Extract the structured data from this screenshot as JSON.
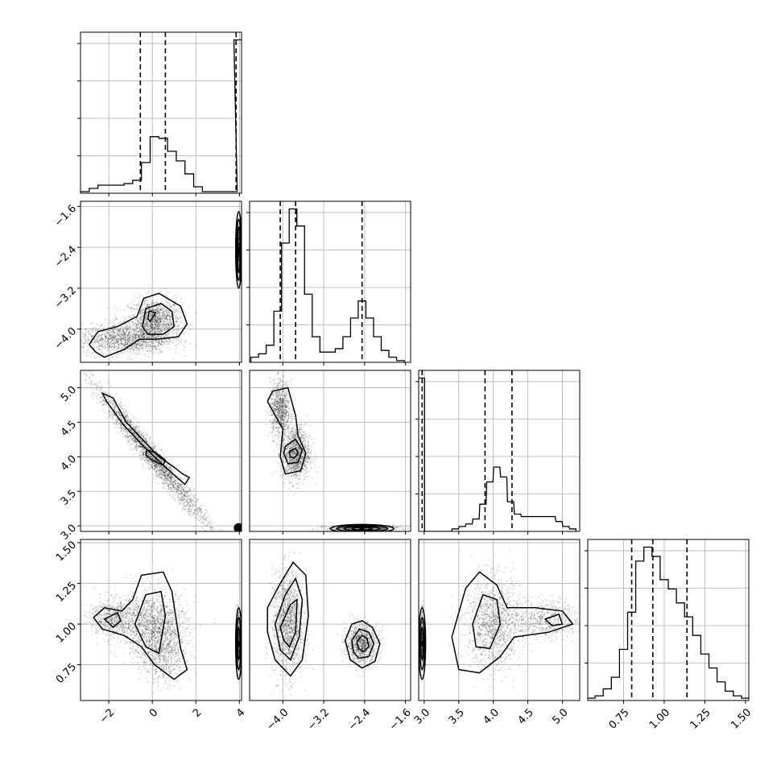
{
  "chart_data": {
    "type": "corner",
    "grid": true,
    "parameters": [
      {
        "key": "p1",
        "range": [
          -3.3,
          4.1
        ],
        "ticks": [
          -2,
          0,
          2,
          4
        ],
        "tick_labels": [
          "−2",
          "0",
          "2",
          "4"
        ],
        "quantiles": [
          -0.55,
          0.6,
          3.85
        ]
      },
      {
        "key": "p2",
        "range": [
          -4.65,
          -1.5
        ],
        "ticks": [
          -4.0,
          -3.2,
          -2.4,
          -1.6
        ],
        "tick_labels": [
          "−4.0",
          "−3.2",
          "−2.4",
          "−1.6"
        ],
        "quantiles": [
          -4.05,
          -3.75,
          -2.45
        ]
      },
      {
        "key": "p3",
        "range": [
          2.92,
          5.25
        ],
        "ticks": [
          3.0,
          3.5,
          4.0,
          4.5,
          5.0
        ],
        "tick_labels": [
          "3.0",
          "3.5",
          "4.0",
          "4.5",
          "5.0"
        ],
        "quantiles": [
          2.97,
          3.88,
          4.27
        ]
      },
      {
        "key": "p4",
        "range": [
          0.53,
          1.52
        ],
        "ticks": [
          0.75,
          1.0,
          1.25,
          1.5
        ],
        "tick_labels": [
          "0.75",
          "1.00",
          "1.25",
          "1.50"
        ],
        "quantiles": [
          0.8,
          0.93,
          1.14
        ]
      }
    ],
    "histograms": [
      {
        "param": 0,
        "x": [
          -3.1,
          -2.7,
          -2.3,
          -1.9,
          -1.5,
          -1.1,
          -0.7,
          -0.3,
          0.1,
          0.5,
          0.9,
          1.3,
          1.7,
          2.1,
          2.5,
          2.9,
          3.3,
          3.7,
          3.95
        ],
        "values": [
          1,
          3,
          5,
          5,
          5,
          6,
          8,
          19,
          35,
          34,
          26,
          20,
          12,
          4,
          1,
          1,
          1,
          1,
          95
        ]
      },
      {
        "param": 1,
        "x": [
          -4.55,
          -4.4,
          -4.25,
          -4.1,
          -3.95,
          -3.8,
          -3.65,
          -3.5,
          -3.35,
          -3.2,
          -3.05,
          -2.9,
          -2.75,
          -2.6,
          -2.45,
          -2.3,
          -2.15,
          -2.0,
          -1.85,
          -1.7
        ],
        "values": [
          3,
          5,
          10,
          30,
          70,
          90,
          80,
          40,
          15,
          6,
          6,
          8,
          15,
          26,
          36,
          26,
          15,
          7,
          3,
          1
        ]
      },
      {
        "param": 2,
        "x": [
          2.96,
          3.05,
          3.15,
          3.25,
          3.35,
          3.45,
          3.55,
          3.65,
          3.75,
          3.85,
          3.95,
          4.05,
          4.15,
          4.25,
          4.35,
          4.45,
          4.55,
          4.65,
          4.75,
          4.85,
          4.95,
          5.05,
          5.15
        ],
        "values": [
          62,
          0,
          0,
          0,
          0,
          1,
          2,
          3,
          5,
          11,
          20,
          26,
          22,
          12,
          7,
          6,
          6,
          6,
          6,
          6,
          4,
          2,
          1
        ]
      },
      {
        "param": 3,
        "x": [
          0.55,
          0.6,
          0.65,
          0.7,
          0.75,
          0.8,
          0.85,
          0.9,
          0.95,
          1.0,
          1.05,
          1.1,
          1.15,
          1.2,
          1.25,
          1.3,
          1.35,
          1.4,
          1.45,
          1.5
        ],
        "values": [
          1,
          2,
          5,
          10,
          22,
          38,
          60,
          66,
          62,
          52,
          48,
          42,
          36,
          28,
          20,
          14,
          8,
          4,
          2,
          1
        ]
      }
    ],
    "blobs": [
      {
        "px": 0,
        "py": 1,
        "x": 0.1,
        "y": -3.85,
        "sx": 0.6,
        "sy": 0.22,
        "n": 1500
      },
      {
        "px": 0,
        "py": 1,
        "x": -1.3,
        "y": -4.2,
        "sx": 1.0,
        "sy": 0.15,
        "n": 1400
      },
      {
        "px": 0,
        "py": 1,
        "x": 3.95,
        "y": -2.45,
        "sx": 0.03,
        "sy": 0.18,
        "n": 500
      },
      {
        "px": 0,
        "py": 2,
        "x": 0.0,
        "y": 4.0,
        "sx": 1.3,
        "sy": 0.1,
        "n": 2400,
        "slope": -0.38
      },
      {
        "px": 0,
        "py": 2,
        "x": 3.95,
        "y": 2.97,
        "sx": 0.05,
        "sy": 0.02,
        "n": 400
      },
      {
        "px": 1,
        "py": 2,
        "x": -3.75,
        "y": 4.05,
        "sx": 0.14,
        "sy": 0.2,
        "n": 1300
      },
      {
        "px": 1,
        "py": 2,
        "x": -4.05,
        "y": 4.7,
        "sx": 0.1,
        "sy": 0.2,
        "n": 900
      },
      {
        "px": 1,
        "py": 2,
        "x": -2.45,
        "y": 2.97,
        "sx": 0.35,
        "sy": 0.02,
        "n": 700
      },
      {
        "px": 0,
        "py": 3,
        "x": 0.0,
        "y": 1.0,
        "sx": 0.8,
        "sy": 0.1,
        "n": 1400
      },
      {
        "px": 0,
        "py": 3,
        "x": -1.8,
        "y": 1.04,
        "sx": 0.55,
        "sy": 0.06,
        "n": 700
      },
      {
        "px": 0,
        "py": 3,
        "x": 0.5,
        "y": 0.83,
        "sx": 0.5,
        "sy": 0.1,
        "n": 800
      },
      {
        "px": 0,
        "py": 3,
        "x": 3.95,
        "y": 0.9,
        "sx": 0.03,
        "sy": 0.1,
        "n": 400
      },
      {
        "px": 1,
        "py": 3,
        "x": -3.9,
        "y": 1.0,
        "sx": 0.15,
        "sy": 0.16,
        "n": 1600
      },
      {
        "px": 1,
        "py": 3,
        "x": -2.45,
        "y": 0.88,
        "sx": 0.16,
        "sy": 0.06,
        "n": 1100
      },
      {
        "px": 2,
        "py": 3,
        "x": 4.0,
        "y": 1.0,
        "sx": 0.2,
        "sy": 0.14,
        "n": 1400
      },
      {
        "px": 2,
        "py": 3,
        "x": 4.75,
        "y": 1.03,
        "sx": 0.25,
        "sy": 0.06,
        "n": 600
      },
      {
        "px": 2,
        "py": 3,
        "x": 2.97,
        "y": 0.9,
        "sx": 0.01,
        "sy": 0.1,
        "n": 400
      }
    ],
    "contours": [
      {
        "px": 0,
        "py": 1,
        "points": [
          [
            -2.6,
            -4.45
          ],
          [
            -2.9,
            -4.3
          ],
          [
            -2.5,
            -4.05
          ],
          [
            -1.6,
            -3.95
          ],
          [
            -0.7,
            -3.75
          ],
          [
            -0.4,
            -3.4
          ],
          [
            0.3,
            -3.3
          ],
          [
            1.3,
            -3.55
          ],
          [
            1.6,
            -3.9
          ],
          [
            1.2,
            -4.15
          ],
          [
            0.2,
            -4.2
          ],
          [
            -0.6,
            -4.2
          ],
          [
            -1.3,
            -4.4
          ],
          [
            -2.2,
            -4.55
          ]
        ]
      },
      {
        "px": 0,
        "py": 1,
        "points": [
          [
            -0.45,
            -3.95
          ],
          [
            -0.3,
            -3.6
          ],
          [
            0.4,
            -3.5
          ],
          [
            0.9,
            -3.65
          ],
          [
            1.0,
            -3.95
          ],
          [
            0.5,
            -4.1
          ],
          [
            -0.2,
            -4.1
          ]
        ]
      },
      {
        "px": 0,
        "py": 1,
        "points": [
          [
            -0.2,
            -3.8
          ],
          [
            -0.15,
            -3.65
          ],
          [
            0.15,
            -3.68
          ],
          [
            0.05,
            -3.75
          ],
          [
            -0.1,
            -3.85
          ]
        ]
      },
      {
        "px": 0,
        "py": 2,
        "points": [
          [
            -2.3,
            4.92
          ],
          [
            -1.8,
            4.85
          ],
          [
            -1.2,
            4.5
          ],
          [
            -0.6,
            4.3
          ],
          [
            0.3,
            4.0
          ],
          [
            1.0,
            3.85
          ],
          [
            1.4,
            3.75
          ],
          [
            1.7,
            3.7
          ],
          [
            1.5,
            3.6
          ],
          [
            0.7,
            3.82
          ],
          [
            -0.4,
            4.15
          ],
          [
            -1.3,
            4.45
          ],
          [
            -2.1,
            4.8
          ]
        ]
      },
      {
        "px": 0,
        "py": 2,
        "points": [
          [
            -0.25,
            4.1
          ],
          [
            0.2,
            4.05
          ],
          [
            0.6,
            3.95
          ],
          [
            0.5,
            3.88
          ],
          [
            0.0,
            3.95
          ],
          [
            -0.3,
            4.02
          ]
        ]
      },
      {
        "px": 1,
        "py": 2,
        "points": [
          [
            -4.2,
            4.95
          ],
          [
            -3.9,
            5.0
          ],
          [
            -3.75,
            4.6
          ],
          [
            -3.7,
            4.3
          ],
          [
            -3.55,
            4.05
          ],
          [
            -3.65,
            3.8
          ],
          [
            -3.95,
            3.75
          ],
          [
            -4.05,
            4.0
          ],
          [
            -4.0,
            4.4
          ],
          [
            -4.3,
            4.8
          ]
        ]
      },
      {
        "px": 1,
        "py": 2,
        "points": [
          [
            -3.95,
            4.15
          ],
          [
            -3.75,
            4.25
          ],
          [
            -3.62,
            4.1
          ],
          [
            -3.7,
            3.92
          ],
          [
            -3.9,
            3.9
          ],
          [
            -3.98,
            4.05
          ]
        ]
      },
      {
        "px": 1,
        "py": 2,
        "points": [
          [
            -3.87,
            4.08
          ],
          [
            -3.75,
            4.12
          ],
          [
            -3.7,
            4.05
          ],
          [
            -3.78,
            3.98
          ],
          [
            -3.86,
            4.0
          ]
        ]
      },
      {
        "px": 0,
        "py": 3,
        "points": [
          [
            -2.7,
            1.04
          ],
          [
            -2.2,
            1.1
          ],
          [
            -1.4,
            1.08
          ],
          [
            -0.9,
            1.15
          ],
          [
            -0.5,
            1.3
          ],
          [
            0.5,
            1.32
          ],
          [
            0.9,
            1.2
          ],
          [
            1.3,
            0.85
          ],
          [
            1.6,
            0.72
          ],
          [
            1.0,
            0.66
          ],
          [
            0.1,
            0.75
          ],
          [
            -0.5,
            0.86
          ],
          [
            -1.3,
            0.93
          ],
          [
            -2.3,
            0.97
          ]
        ]
      },
      {
        "px": 0,
        "py": 3,
        "points": [
          [
            -0.8,
            1.0
          ],
          [
            -0.3,
            1.18
          ],
          [
            0.4,
            1.2
          ],
          [
            0.6,
            1.05
          ],
          [
            0.3,
            0.82
          ],
          [
            -0.3,
            0.86
          ]
        ]
      },
      {
        "px": 0,
        "py": 3,
        "points": [
          [
            -2.2,
            1.03
          ],
          [
            -1.6,
            1.07
          ],
          [
            -1.45,
            1.02
          ],
          [
            -1.8,
            0.98
          ]
        ]
      },
      {
        "px": 1,
        "py": 3,
        "points": [
          [
            -4.3,
            1.1
          ],
          [
            -4.05,
            1.25
          ],
          [
            -3.8,
            1.38
          ],
          [
            -3.55,
            1.3
          ],
          [
            -3.5,
            1.05
          ],
          [
            -3.62,
            0.78
          ],
          [
            -3.85,
            0.68
          ],
          [
            -4.15,
            0.78
          ],
          [
            -4.3,
            0.95
          ]
        ]
      },
      {
        "px": 1,
        "py": 3,
        "points": [
          [
            -4.15,
            1.0
          ],
          [
            -3.95,
            1.18
          ],
          [
            -3.75,
            1.28
          ],
          [
            -3.62,
            1.15
          ],
          [
            -3.68,
            0.92
          ],
          [
            -3.85,
            0.78
          ],
          [
            -4.05,
            0.84
          ]
        ]
      },
      {
        "px": 1,
        "py": 3,
        "points": [
          [
            -4.05,
            0.98
          ],
          [
            -3.85,
            1.12
          ],
          [
            -3.72,
            1.15
          ],
          [
            -3.75,
            0.95
          ],
          [
            -3.87,
            0.86
          ],
          [
            -3.98,
            0.9
          ]
        ]
      },
      {
        "px": 1,
        "py": 3,
        "points": [
          [
            -2.78,
            0.9
          ],
          [
            -2.65,
            1.0
          ],
          [
            -2.45,
            1.02
          ],
          [
            -2.25,
            0.98
          ],
          [
            -2.1,
            0.88
          ],
          [
            -2.2,
            0.77
          ],
          [
            -2.45,
            0.73
          ],
          [
            -2.68,
            0.78
          ]
        ]
      },
      {
        "px": 1,
        "py": 3,
        "points": [
          [
            -2.65,
            0.9
          ],
          [
            -2.5,
            0.97
          ],
          [
            -2.32,
            0.95
          ],
          [
            -2.22,
            0.88
          ],
          [
            -2.32,
            0.8
          ],
          [
            -2.52,
            0.79
          ],
          [
            -2.62,
            0.83
          ]
        ]
      },
      {
        "px": 1,
        "py": 3,
        "points": [
          [
            -2.55,
            0.89
          ],
          [
            -2.45,
            0.93
          ],
          [
            -2.35,
            0.91
          ],
          [
            -2.32,
            0.86
          ],
          [
            -2.42,
            0.83
          ],
          [
            -2.52,
            0.85
          ]
        ]
      },
      {
        "px": 2,
        "py": 3,
        "points": [
          [
            3.4,
            0.92
          ],
          [
            3.6,
            1.22
          ],
          [
            3.8,
            1.32
          ],
          [
            4.05,
            1.24
          ],
          [
            4.2,
            1.1
          ],
          [
            4.6,
            1.1
          ],
          [
            5.0,
            1.08
          ],
          [
            5.15,
            1.0
          ],
          [
            4.8,
            0.95
          ],
          [
            4.3,
            0.92
          ],
          [
            4.1,
            0.8
          ],
          [
            3.8,
            0.7
          ],
          [
            3.5,
            0.72
          ]
        ]
      },
      {
        "px": 2,
        "py": 3,
        "points": [
          [
            3.7,
            1.0
          ],
          [
            3.85,
            1.18
          ],
          [
            4.05,
            1.15
          ],
          [
            4.1,
            1.0
          ],
          [
            3.95,
            0.85
          ],
          [
            3.75,
            0.86
          ]
        ]
      },
      {
        "px": 2,
        "py": 3,
        "points": [
          [
            4.75,
            1.03
          ],
          [
            4.95,
            1.06
          ],
          [
            5.0,
            1.0
          ],
          [
            4.85,
            0.99
          ]
        ]
      }
    ],
    "edge_rings": [
      {
        "px": 0,
        "py": 1,
        "x": 3.97,
        "y": -2.45,
        "rx": [
          0.06,
          0.1,
          0.14
        ],
        "ry": [
          0.45,
          0.6,
          0.75
        ]
      },
      {
        "px": 0,
        "py": 2,
        "x": 3.97,
        "y": 2.97,
        "rx": [
          0.08,
          0.14,
          0.2
        ],
        "ry": [
          0.02,
          0.04,
          0.06
        ]
      },
      {
        "px": 1,
        "py": 2,
        "x": -2.45,
        "y": 2.96,
        "rx": [
          0.2,
          0.35,
          0.5,
          0.62
        ],
        "ry": [
          0.02,
          0.03,
          0.045,
          0.06
        ]
      },
      {
        "px": 0,
        "py": 3,
        "x": 3.97,
        "y": 0.88,
        "rx": [
          0.06,
          0.1,
          0.14
        ],
        "ry": [
          0.1,
          0.16,
          0.22
        ]
      },
      {
        "px": 2,
        "py": 3,
        "x": 2.97,
        "y": 0.88,
        "rx": [
          0.02,
          0.035,
          0.05
        ],
        "ry": [
          0.1,
          0.16,
          0.22
        ]
      }
    ]
  }
}
